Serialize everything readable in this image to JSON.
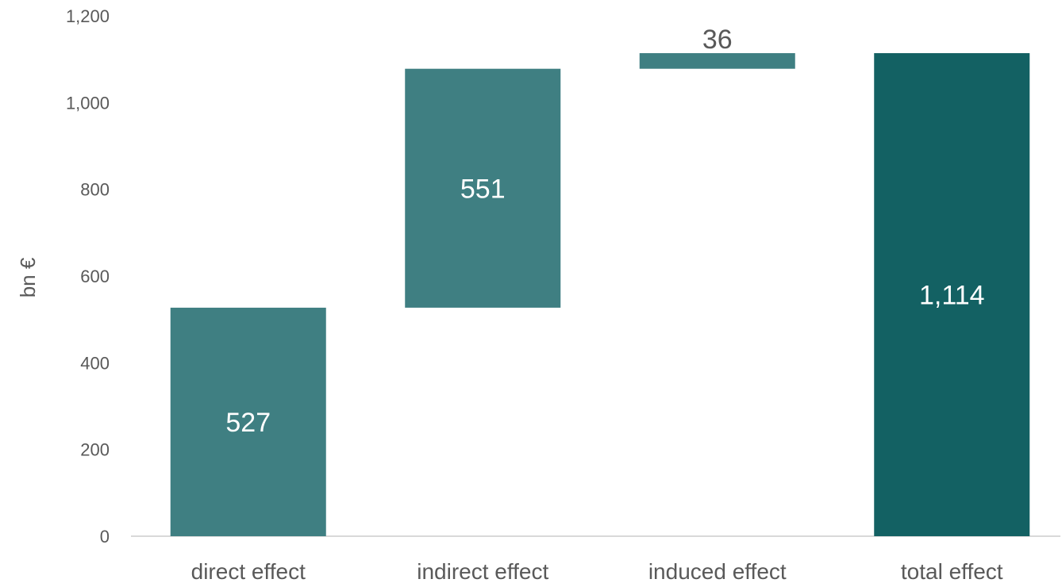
{
  "chart_data": {
    "type": "bar",
    "subtype": "waterfall",
    "categories": [
      "direct effect",
      "indirect effect",
      "induced effect",
      "total effect"
    ],
    "values": [
      527,
      551,
      36,
      1114
    ],
    "bases": [
      0,
      527,
      1078,
      0
    ],
    "data_labels": [
      "527",
      "551",
      "36",
      "1,114"
    ],
    "data_label_positions": [
      "inside",
      "inside",
      "above",
      "inside"
    ],
    "title": "",
    "xlabel": "",
    "ylabel": "bn €",
    "ylim": [
      0,
      1200
    ],
    "yticks": [
      0,
      200,
      400,
      600,
      800,
      1000,
      1200
    ],
    "ytick_labels": [
      "0",
      "200",
      "400",
      "600",
      "800",
      "1,000",
      "1,200"
    ],
    "grid": false,
    "legend": "none",
    "colors": {
      "bar": "#3f7f82",
      "total_bar": "#136163",
      "label_inside": "#ffffff",
      "label_outside": "#595959",
      "axis_text": "#595959",
      "axis_line": "#d9d9d9"
    },
    "bar_colors": [
      "#3f7f82",
      "#3f7f82",
      "#3f7f82",
      "#136163"
    ]
  }
}
